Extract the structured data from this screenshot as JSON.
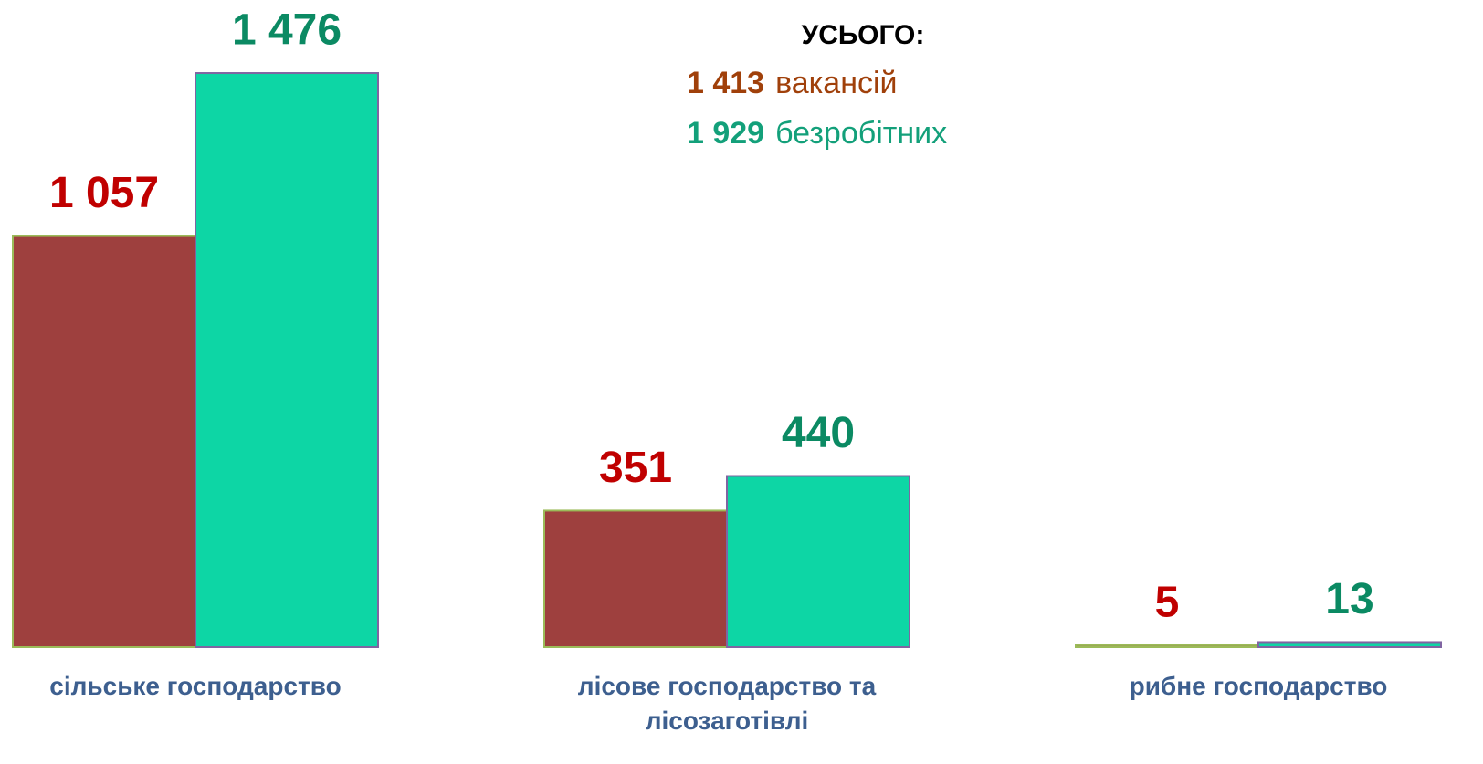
{
  "chart_data": {
    "type": "bar",
    "categories": [
      "сільське господарство",
      "лісове господарство та лісозаготівлі",
      "рибне господарство"
    ],
    "series": [
      {
        "color": "#9e403e",
        "label_color": "#c00000",
        "edge_color": "#9bbb59",
        "values": [
          1057,
          351,
          5
        ],
        "value_labels": [
          "1 057",
          "351",
          "5"
        ]
      },
      {
        "color": "#0dd6a5",
        "label_color": "#0b8a63",
        "edge_color": "#8064a2",
        "values": [
          1476,
          440,
          13
        ],
        "value_labels": [
          "1 476",
          "440",
          "13"
        ]
      }
    ],
    "ylim": [
      0,
      1500
    ],
    "summary": {
      "title": "УСЬОГО:",
      "lines": [
        {
          "number": "1 413",
          "text": "вакансій",
          "color": "#a0400a"
        },
        {
          "number": "1 929",
          "text": "безробітних",
          "color": "#13a07a"
        }
      ]
    }
  }
}
